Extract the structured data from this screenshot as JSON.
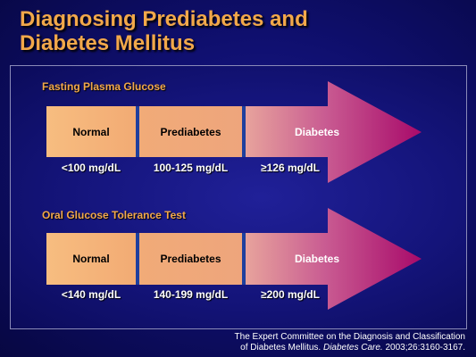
{
  "title": {
    "line1": "Diagnosing Prediabetes and",
    "line2": "Diabetes Mellitus"
  },
  "sections": [
    {
      "label": "Fasting Plasma Glucose",
      "segments": [
        "Normal",
        "Prediabetes",
        "Diabetes"
      ],
      "ranges": [
        "<100 mg/dL",
        "100-125 mg/dL",
        "≥126 mg/dL"
      ]
    },
    {
      "label": "Oral Glucose Tolerance Test",
      "segments": [
        "Normal",
        "Prediabetes",
        "Diabetes"
      ],
      "ranges": [
        "<140 mg/dL",
        "140-199 mg/dL",
        "≥200 mg/dL"
      ]
    }
  ],
  "citation": {
    "line1": "The Expert Committee on the Diagnosis and Classification",
    "line2_pre": "of Diabetes Mellitus. ",
    "line2_journal": "Diabetes Care.",
    "line2_post": " 2003;26:3160-3167."
  },
  "colors": {
    "title": "#f2a84a",
    "normal_fill": "#f5b77a",
    "prediabetes_fill": "#f0a878",
    "diabetes_start": "#e9a19a",
    "diabetes_end": "#b0106e",
    "divider": "#1e3f9e",
    "background": "#12127a"
  }
}
